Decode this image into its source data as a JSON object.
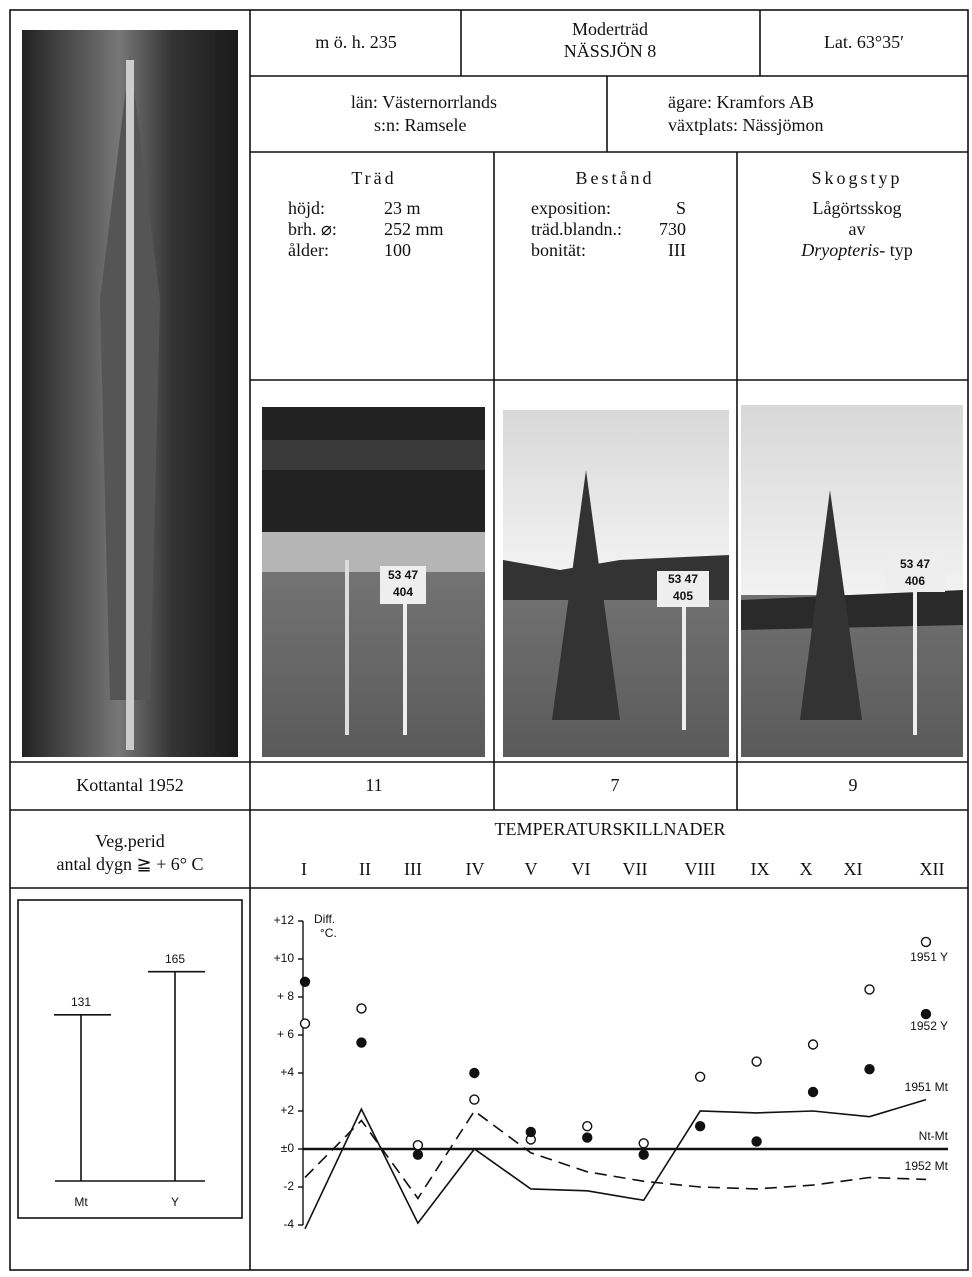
{
  "header": {
    "altitude": "m ö. h. 235",
    "title": [
      "Moderträd",
      "NÄSSJÖN 8"
    ],
    "latitude": "Lat. 63°35′"
  },
  "location": {
    "county": "län: Västernorrlands",
    "parish": "s:n: Ramsele",
    "owner": "ägare: Kramfors AB",
    "site": "växtplats: Nässjömon"
  },
  "tree": {
    "title": "Träd",
    "rows": [
      [
        "höjd:",
        "23 m"
      ],
      [
        "brh. ⌀:",
        "252 mm"
      ],
      [
        "ålder:",
        "100"
      ]
    ]
  },
  "stand": {
    "title": "Bestånd",
    "rows": [
      [
        "exposition:",
        "S"
      ],
      [
        "träd.blandn.:",
        "730"
      ],
      [
        "bonität:",
        "III"
      ]
    ]
  },
  "forest_type": {
    "title": "Skogstyp",
    "lines": [
      "Lågörtsskog",
      "av"
    ],
    "genus": "Dryopteris",
    "suffix": "- typ"
  },
  "photos": [
    {
      "sign": [
        "53 47",
        "404"
      ]
    },
    {
      "sign": [
        "53 47",
        "405"
      ]
    },
    {
      "sign": [
        "53 47",
        "406"
      ]
    }
  ],
  "cone_count": {
    "label": "Kottantal 1952",
    "values": [
      11,
      7,
      9
    ]
  },
  "veg_period": {
    "label": [
      "Veg.perid",
      "antal dygn ≧ + 6° C"
    ],
    "chart": {
      "type": "bar",
      "categories": [
        "Mt",
        "Y"
      ],
      "values": [
        131,
        165
      ],
      "ylim": [
        0,
        175
      ]
    }
  },
  "temperature": {
    "title": "TEMPERATURSKILLNADER",
    "months": [
      "I",
      "II",
      "III",
      "IV",
      "V",
      "VI",
      "VII",
      "VIII",
      "IX",
      "X",
      "XI",
      "XII"
    ],
    "chart": {
      "type": "line",
      "axis_label": [
        "Diff.",
        "°C."
      ],
      "ylim": [
        -4,
        12
      ],
      "yticks": [
        {
          "value": 12,
          "label": "+12"
        },
        {
          "value": 10,
          "label": "+10"
        },
        {
          "value": 8,
          "label": "+ 8"
        },
        {
          "value": 6,
          "label": "+ 6"
        },
        {
          "value": 4,
          "label": "+4"
        },
        {
          "value": 2,
          "label": "+2"
        },
        {
          "value": 0,
          "label": "±0"
        },
        -2,
        -4
      ],
      "series": [
        {
          "name": "1951 Y",
          "type": "scatter",
          "marker": "open",
          "values": [
            6.6,
            7.4,
            0.2,
            2.6,
            0.5,
            1.2,
            0.3,
            3.8,
            4.6,
            5.5,
            8.4,
            10.9
          ]
        },
        {
          "name": "1952 Y",
          "type": "scatter",
          "marker": "filled",
          "values": [
            8.8,
            5.6,
            -0.3,
            4.0,
            0.9,
            0.6,
            -0.3,
            1.2,
            0.4,
            3.0,
            4.2,
            7.1
          ]
        },
        {
          "name": "1951 Mt",
          "type": "line",
          "dash": false,
          "values": [
            -4.2,
            2.1,
            -3.9,
            0.0,
            -2.1,
            -2.2,
            -2.7,
            2.0,
            1.9,
            2.0,
            1.7,
            2.6
          ]
        },
        {
          "name": "1952 Mt",
          "type": "line",
          "dash": true,
          "values": [
            -1.5,
            1.5,
            -2.6,
            2.0,
            -0.2,
            -1.2,
            -1.7,
            -2.0,
            -2.1,
            -1.9,
            -1.5,
            -1.6
          ]
        }
      ],
      "reference": {
        "name": "Nt-Mt",
        "value": 0
      }
    }
  }
}
